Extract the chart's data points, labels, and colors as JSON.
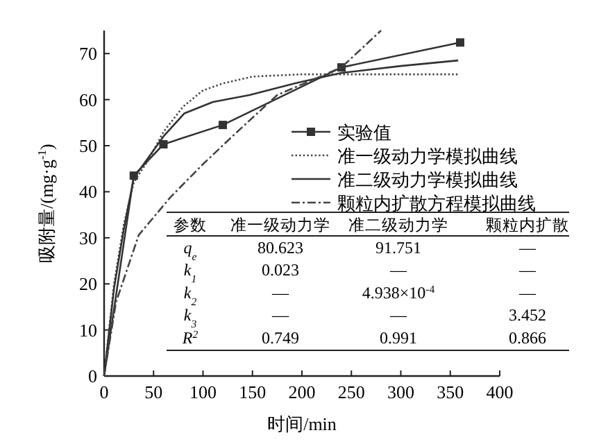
{
  "chart_data": {
    "type": "line",
    "xlabel": "时间/min",
    "ylabel": "吸附量/(mg·g$^{-1}$)",
    "xlim": [
      0,
      400
    ],
    "ylim": [
      0,
      75
    ],
    "xticks": [
      0,
      50,
      100,
      150,
      200,
      250,
      300,
      350,
      400
    ],
    "yticks": [
      0,
      10,
      20,
      30,
      40,
      50,
      60,
      70
    ],
    "legend": "right",
    "series": [
      {
        "name": "实验值",
        "color": "#333333",
        "marker": "square",
        "line_style": "solid",
        "x": [
          0,
          30,
          60,
          120,
          240,
          360
        ],
        "values": [
          0,
          43.5,
          50.3,
          54.5,
          67,
          72.4
        ]
      },
      {
        "name": "准一级动力学模拟曲线",
        "color": "#444444",
        "marker": "none",
        "line_style": "dotted",
        "x": [
          0,
          10,
          20,
          30,
          45,
          60,
          80,
          100,
          120,
          150,
          200,
          280,
          358
        ],
        "values": [
          0,
          20,
          33,
          42,
          47,
          53,
          58.5,
          62,
          63.5,
          65,
          65.5,
          65.5,
          65.5
        ]
      },
      {
        "name": "准二级动力学模拟曲线",
        "color": "#333333",
        "marker": "none",
        "line_style": "solid",
        "x": [
          0,
          10,
          20,
          30,
          60,
          81,
          110,
          147,
          194,
          240,
          300,
          358
        ],
        "values": [
          0,
          19,
          32,
          43,
          52,
          57,
          59.5,
          61,
          63.6,
          65.8,
          67.3,
          68.5
        ]
      },
      {
        "name": "颗粒内扩散方程模拟曲线",
        "color": "#444444",
        "marker": "none",
        "line_style": "dashdot",
        "x": [
          0,
          12,
          35,
          67,
          100,
          133,
          175,
          240,
          280
        ],
        "values": [
          0,
          16,
          30.6,
          38.8,
          46,
          52.7,
          61,
          67,
          75
        ]
      }
    ],
    "annotations": [
      "参数",
      "准一级动力学",
      "准二级动力学",
      "颗粒内扩散",
      "q$_{e}$",
      "80.623",
      "91.751",
      "—",
      "k$_{1}$",
      "0.023",
      "—",
      "—",
      "k$_{2}$",
      "—",
      "4.938×10$^{-4}$",
      "—",
      "k$_{3}$",
      "—",
      "—",
      "3.452",
      "R$^{2}$",
      "0.749",
      "0.991",
      "0.866"
    ]
  }
}
